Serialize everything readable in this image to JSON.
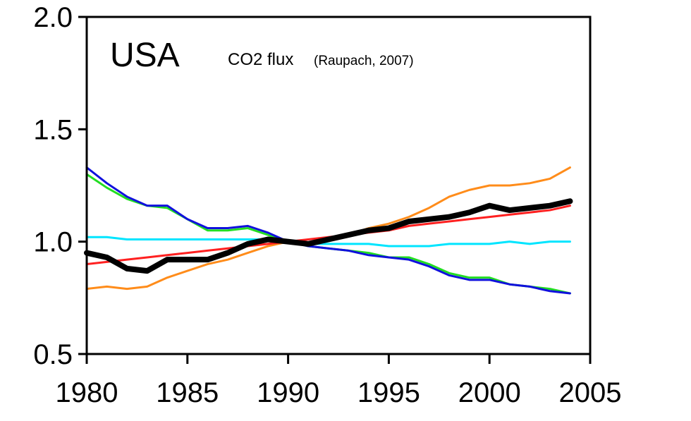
{
  "chart_data": {
    "type": "line",
    "title": "",
    "region_label": "USA",
    "subtitle": "CO2 flux",
    "citation": "(Raupach, 2007)",
    "xlabel": "",
    "ylabel": "",
    "xlim": [
      1980,
      2005
    ],
    "ylim": [
      0.5,
      2.0
    ],
    "xticks": [
      "1980",
      "1985",
      "1990",
      "1995",
      "2000",
      "2005"
    ],
    "yticks": [
      "0.5",
      "1.0",
      "1.5",
      "2.0"
    ],
    "grid": false,
    "legend": "none",
    "x": [
      1980,
      1981,
      1982,
      1983,
      1984,
      1985,
      1986,
      1987,
      1988,
      1989,
      1990,
      1991,
      1992,
      1993,
      1994,
      1995,
      1996,
      1997,
      1998,
      1999,
      2000,
      2001,
      2002,
      2003,
      2004
    ],
    "series": [
      {
        "color": "#ff8c1a",
        "width": 3,
        "values": [
          0.79,
          0.8,
          0.79,
          0.8,
          0.84,
          0.87,
          0.9,
          0.92,
          0.95,
          0.98,
          1.0,
          0.99,
          1.01,
          1.03,
          1.06,
          1.08,
          1.11,
          1.15,
          1.2,
          1.23,
          1.25,
          1.25,
          1.26,
          1.28,
          1.33
        ]
      },
      {
        "color": "#ff2020",
        "width": 3,
        "values": [
          0.9,
          0.91,
          0.92,
          0.93,
          0.94,
          0.95,
          0.96,
          0.97,
          0.98,
          0.99,
          1.0,
          1.01,
          1.02,
          1.03,
          1.04,
          1.05,
          1.07,
          1.08,
          1.09,
          1.1,
          1.11,
          1.12,
          1.13,
          1.14,
          1.16
        ]
      },
      {
        "color": "#00e5ff",
        "width": 3,
        "values": [
          1.02,
          1.02,
          1.01,
          1.01,
          1.01,
          1.01,
          1.01,
          1.01,
          1.01,
          1.01,
          1.0,
          0.99,
          0.99,
          0.99,
          0.99,
          0.98,
          0.98,
          0.98,
          0.99,
          0.99,
          0.99,
          1.0,
          0.99,
          1.0,
          1.0
        ]
      },
      {
        "color": "#22dd22",
        "width": 3,
        "values": [
          1.3,
          1.24,
          1.19,
          1.16,
          1.15,
          1.1,
          1.05,
          1.05,
          1.06,
          1.03,
          1.0,
          0.98,
          0.97,
          0.96,
          0.95,
          0.93,
          0.93,
          0.9,
          0.86,
          0.84,
          0.84,
          0.81,
          0.8,
          0.79,
          0.77
        ]
      },
      {
        "color": "#1010dd",
        "width": 3,
        "values": [
          1.33,
          1.26,
          1.2,
          1.16,
          1.16,
          1.1,
          1.06,
          1.06,
          1.07,
          1.04,
          1.0,
          0.98,
          0.97,
          0.96,
          0.94,
          0.93,
          0.92,
          0.89,
          0.85,
          0.83,
          0.83,
          0.81,
          0.8,
          0.78,
          0.77
        ]
      },
      {
        "color": "#000000",
        "width": 8,
        "values": [
          0.95,
          0.93,
          0.88,
          0.87,
          0.92,
          0.92,
          0.92,
          0.95,
          0.99,
          1.01,
          1.0,
          0.99,
          1.01,
          1.03,
          1.05,
          1.06,
          1.09,
          1.1,
          1.11,
          1.13,
          1.16,
          1.14,
          1.15,
          1.16,
          1.18
        ]
      }
    ]
  }
}
